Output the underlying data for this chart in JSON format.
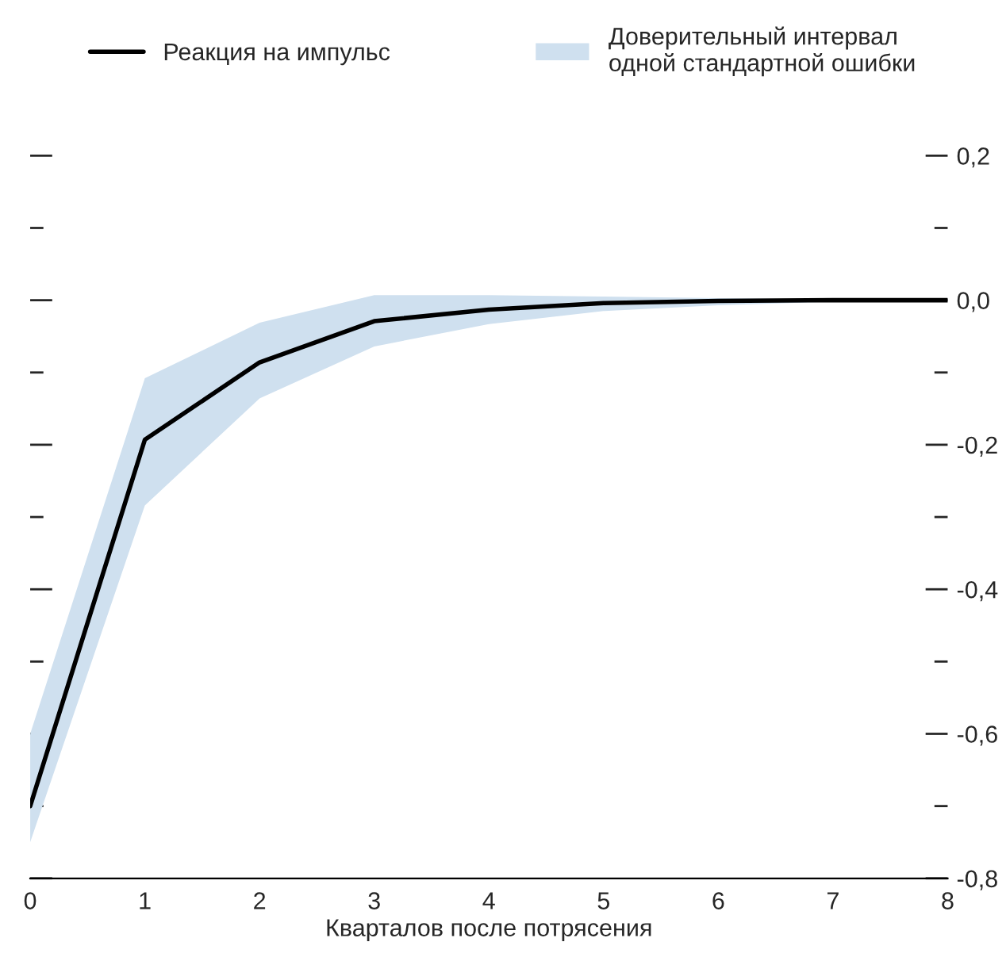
{
  "chart_data": {
    "type": "line",
    "xlabel": "Кварталов после потрясения",
    "x": [
      0,
      1,
      2,
      3,
      4,
      5,
      6,
      7,
      8
    ],
    "series": [
      {
        "name": "Реакция на импульс",
        "color": "#000000",
        "values": [
          -0.7,
          -0.193,
          -0.086,
          -0.029,
          -0.013,
          -0.004,
          -0.001,
          0.0,
          0.0
        ],
        "lower": [
          -0.75,
          -0.284,
          -0.136,
          -0.064,
          -0.033,
          -0.015,
          -0.007,
          -0.002,
          0.0
        ],
        "upper": [
          -0.6,
          -0.108,
          -0.031,
          0.007,
          0.007,
          0.005,
          0.003,
          0.001,
          0.0
        ]
      }
    ],
    "annotations": [
      "Доверительный интервал\nодной стандартной ошибки"
    ],
    "xlim": [
      0,
      8
    ],
    "xticks": [
      0,
      1,
      2,
      3,
      4,
      5,
      6,
      7,
      8
    ],
    "ylim": [
      -0.8,
      0.2
    ],
    "yticks": [
      {
        "value": 0.2,
        "label": "0,2"
      },
      {
        "value": 0.1,
        "label": null
      },
      {
        "value": 0.0,
        "label": "0,0"
      },
      {
        "value": -0.1,
        "label": null
      },
      {
        "value": -0.2,
        "label": "-0,2"
      },
      {
        "value": -0.3,
        "label": null
      },
      {
        "value": -0.4,
        "label": "-0,4"
      },
      {
        "value": -0.5,
        "label": null
      },
      {
        "value": -0.6,
        "label": "-0,6"
      },
      {
        "value": -0.7,
        "label": null
      },
      {
        "value": -0.8,
        "label": "-0,8"
      }
    ],
    "grid": false,
    "legend": "top",
    "line_style": "solid",
    "marker": "none"
  }
}
